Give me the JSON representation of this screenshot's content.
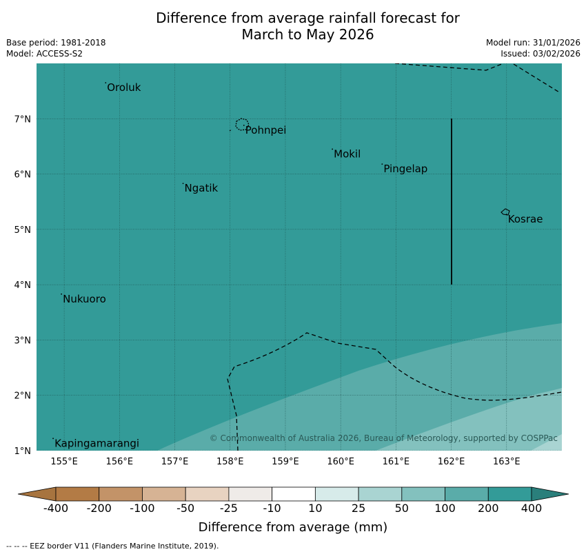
{
  "header": {
    "title_line1": "Difference from average rainfall forecast for",
    "title_line2": "March to May 2026",
    "base_period": "Base period: 1981-2018",
    "model": "Model: ACCESS-S2",
    "model_run": "Model run: 31/01/2026",
    "issued": "Issued: 03/02/2026"
  },
  "map": {
    "lon_ticks": [
      "155°E",
      "156°E",
      "157°E",
      "158°E",
      "159°E",
      "160°E",
      "161°E",
      "162°E",
      "163°E"
    ],
    "lat_ticks": [
      "1°N",
      "2°N",
      "3°N",
      "4°N",
      "5°N",
      "6°N",
      "7°N"
    ],
    "lon_range": [
      154.5,
      164.0
    ],
    "lat_range": [
      1.0,
      8.0
    ],
    "places": [
      {
        "name": "Oroluk",
        "lon": 155.75,
        "lat": 7.65
      },
      {
        "name": "Pohnpei",
        "lon": 158.25,
        "lat": 6.88
      },
      {
        "name": "Mokil",
        "lon": 159.85,
        "lat": 6.45
      },
      {
        "name": "Pingelap",
        "lon": 160.75,
        "lat": 6.18
      },
      {
        "name": "Ngatik",
        "lon": 157.15,
        "lat": 5.83
      },
      {
        "name": "Kosrae",
        "lon": 163.0,
        "lat": 5.27
      },
      {
        "name": "Nukuoro",
        "lon": 154.95,
        "lat": 3.83
      },
      {
        "name": "Kapingamarangi",
        "lon": 154.8,
        "lat": 1.22
      }
    ],
    "copyright": "© Commonwealth of Australia 2026, Bureau of Meteorology, supported by COSPPac"
  },
  "colors": {
    "background_fill": "#339b98",
    "band_100_200": "#5aaca9",
    "band_50_100": "#83c1be",
    "band_25_50": "#a9d4d2",
    "line": "#000000"
  },
  "colorbar": {
    "title": "Difference from average (mm)",
    "labels": [
      "-400",
      "-200",
      "-100",
      "-50",
      "-25",
      "-10",
      "10",
      "25",
      "50",
      "100",
      "200",
      "400"
    ],
    "colors": [
      "#a7743f",
      "#b37b45",
      "#c39368",
      "#d6b394",
      "#e8d3c1",
      "#efebe8",
      "#ffffff",
      "#d7ebea",
      "#a9d4d2",
      "#83c1be",
      "#5aaca9",
      "#339b98",
      "#2a7f7b"
    ]
  },
  "footnote": "--  --  -- EEZ border V11 (Flanders Marine Institute, 2019)."
}
